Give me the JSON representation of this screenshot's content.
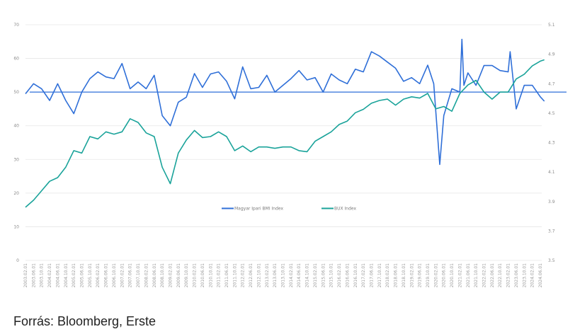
{
  "chart_data": {
    "type": "line",
    "title": "",
    "xlabel": "",
    "ylabel": "",
    "grid": true,
    "legend_placement": "bottom-center",
    "left_axis": {
      "ylim": [
        0,
        70
      ],
      "ticks": [
        "0",
        "10",
        "20",
        "30",
        "40",
        "50",
        "60",
        "70"
      ]
    },
    "right_axis": {
      "ylim": [
        3.5,
        5.1
      ],
      "ticks": [
        "3.5",
        "3.7",
        "3.9",
        "4.1",
        "4.3",
        "4.5",
        "4.7",
        "4.9",
        "5.1"
      ]
    },
    "reference_line": {
      "axis": "left",
      "value": 50,
      "color": "#2f6fd8"
    },
    "x_tick_labels": [
      "2003.02.01",
      "2003.06.01",
      "2003.10.01",
      "2004.02.01",
      "2004.06.01",
      "2004.10.01",
      "2005.02.01",
      "2005.06.01",
      "2005.10.01",
      "2006.02.01",
      "2006.06.01",
      "2006.10.01",
      "2007.02.01",
      "2007.06.01",
      "2007.10.01",
      "2008.02.01",
      "2008.06.01",
      "2008.10.01",
      "2009.02.01",
      "2009.06.01",
      "2009.10.01",
      "2010.02.01",
      "2010.06.01",
      "2010.10.01",
      "2011.02.01",
      "2011.06.01",
      "2011.10.01",
      "2012.02.01",
      "2012.06.01",
      "2012.10.01",
      "2013.02.01",
      "2013.06.01",
      "2013.10.01",
      "2014.02.01",
      "2014.06.01",
      "2014.10.01",
      "2015.02.01",
      "2015.06.01",
      "2015.10.01",
      "2016.02.01",
      "2016.06.01",
      "2016.10.01",
      "2017.02.01",
      "2017.06.01",
      "2017.10.01",
      "2018.02.01",
      "2018.06.01",
      "2018.10.01",
      "2019.02.01",
      "2019.06.01",
      "2019.10.01",
      "2020.02.01",
      "2020.06.01",
      "2020.10.01",
      "2021.02.01",
      "2021.06.01",
      "2021.10.01",
      "2022.02.01",
      "2022.06.01",
      "2022.10.01",
      "2023.02.01",
      "2023.06.01",
      "2023.10.01",
      "2024.02.01",
      "2024.06.01"
    ],
    "series": [
      {
        "name": "Magyar Ipari BMI Index",
        "axis": "left",
        "color": "#2f6fd8",
        "points": [
          [
            "2003.02.01",
            49.5
          ],
          [
            "2003.06.01",
            52.5
          ],
          [
            "2003.10.01",
            51
          ],
          [
            "2004.02.01",
            47.5
          ],
          [
            "2004.06.01",
            52.5
          ],
          [
            "2004.10.01",
            47.5
          ],
          [
            "2005.02.01",
            43.6
          ],
          [
            "2005.06.01",
            50
          ],
          [
            "2005.10.01",
            54
          ],
          [
            "2006.02.01",
            56
          ],
          [
            "2006.06.01",
            54.5
          ],
          [
            "2006.10.01",
            54
          ],
          [
            "2007.02.01",
            58.5
          ],
          [
            "2007.06.01",
            51
          ],
          [
            "2007.10.01",
            53
          ],
          [
            "2008.02.01",
            51
          ],
          [
            "2008.06.01",
            55
          ],
          [
            "2008.10.01",
            43
          ],
          [
            "2009.02.01",
            40
          ],
          [
            "2009.06.01",
            47
          ],
          [
            "2009.10.01",
            48.5
          ],
          [
            "2010.02.01",
            55.5
          ],
          [
            "2010.06.01",
            51.4
          ],
          [
            "2010.10.01",
            55.4
          ],
          [
            "2011.02.01",
            56
          ],
          [
            "2011.06.01",
            53.2
          ],
          [
            "2011.10.01",
            48
          ],
          [
            "2012.02.01",
            57.5
          ],
          [
            "2012.06.01",
            51
          ],
          [
            "2012.10.01",
            51.4
          ],
          [
            "2013.02.01",
            55
          ],
          [
            "2013.06.01",
            50
          ],
          [
            "2013.10.01",
            52
          ],
          [
            "2014.02.01",
            54
          ],
          [
            "2014.06.01",
            56.4
          ],
          [
            "2014.10.01",
            53.6
          ],
          [
            "2015.02.01",
            54.3
          ],
          [
            "2015.06.01",
            50
          ],
          [
            "2015.10.01",
            55.4
          ],
          [
            "2016.02.01",
            53.6
          ],
          [
            "2016.06.01",
            52.5
          ],
          [
            "2016.10.01",
            56.8
          ],
          [
            "2017.02.01",
            56
          ],
          [
            "2017.06.01",
            62
          ],
          [
            "2017.10.01",
            60.7
          ],
          [
            "2018.02.01",
            58.9
          ],
          [
            "2018.06.01",
            57.1
          ],
          [
            "2018.10.01",
            53.2
          ],
          [
            "2019.02.01",
            54.3
          ],
          [
            "2019.06.01",
            52.5
          ],
          [
            "2019.10.01",
            58
          ],
          [
            "2020.01.01",
            52.5
          ],
          [
            "2020.04.01",
            28.5
          ],
          [
            "2020.06.01",
            43
          ],
          [
            "2020.10.01",
            51
          ],
          [
            "2021.02.01",
            50
          ],
          [
            "2021.03.01",
            65.7
          ],
          [
            "2021.04.01",
            52
          ],
          [
            "2021.06.01",
            55.7
          ],
          [
            "2021.10.01",
            52
          ],
          [
            "2022.02.01",
            57.9
          ],
          [
            "2022.06.01",
            57.9
          ],
          [
            "2022.10.01",
            56.4
          ],
          [
            "2023.02.01",
            56
          ],
          [
            "2023.03.01",
            62
          ],
          [
            "2023.06.01",
            45
          ],
          [
            "2023.10.01",
            52
          ],
          [
            "2024.02.01",
            52
          ],
          [
            "2024.06.01",
            48.6
          ],
          [
            "2024.08.01",
            47.3
          ]
        ]
      },
      {
        "name": "BUX Index",
        "axis": "right",
        "color": "#1aa39a",
        "points": [
          [
            "2003.02.01",
            3.861
          ],
          [
            "2003.06.01",
            3.909
          ],
          [
            "2003.10.01",
            3.973
          ],
          [
            "2004.02.01",
            4.037
          ],
          [
            "2004.06.01",
            4.062
          ],
          [
            "2004.10.01",
            4.133
          ],
          [
            "2005.02.01",
            4.245
          ],
          [
            "2005.06.01",
            4.229
          ],
          [
            "2005.10.01",
            4.341
          ],
          [
            "2006.02.01",
            4.325
          ],
          [
            "2006.06.01",
            4.373
          ],
          [
            "2006.10.01",
            4.357
          ],
          [
            "2007.02.01",
            4.373
          ],
          [
            "2007.06.01",
            4.462
          ],
          [
            "2007.10.01",
            4.437
          ],
          [
            "2008.02.01",
            4.366
          ],
          [
            "2008.06.01",
            4.341
          ],
          [
            "2008.10.01",
            4.133
          ],
          [
            "2009.02.01",
            4.021
          ],
          [
            "2009.06.01",
            4.229
          ],
          [
            "2009.10.01",
            4.318
          ],
          [
            "2010.02.01",
            4.382
          ],
          [
            "2010.06.01",
            4.334
          ],
          [
            "2010.10.01",
            4.341
          ],
          [
            "2011.02.01",
            4.373
          ],
          [
            "2011.06.01",
            4.341
          ],
          [
            "2011.10.01",
            4.245
          ],
          [
            "2012.02.01",
            4.277
          ],
          [
            "2012.06.01",
            4.238
          ],
          [
            "2012.10.01",
            4.27
          ],
          [
            "2013.02.01",
            4.27
          ],
          [
            "2013.06.01",
            4.261
          ],
          [
            "2013.10.01",
            4.27
          ],
          [
            "2014.02.01",
            4.27
          ],
          [
            "2014.06.01",
            4.245
          ],
          [
            "2014.10.01",
            4.238
          ],
          [
            "2015.02.01",
            4.309
          ],
          [
            "2015.06.01",
            4.341
          ],
          [
            "2015.10.01",
            4.373
          ],
          [
            "2016.02.01",
            4.423
          ],
          [
            "2016.06.01",
            4.446
          ],
          [
            "2016.10.01",
            4.503
          ],
          [
            "2017.02.01",
            4.526
          ],
          [
            "2017.06.01",
            4.567
          ],
          [
            "2017.10.01",
            4.586
          ],
          [
            "2018.02.01",
            4.595
          ],
          [
            "2018.06.01",
            4.554
          ],
          [
            "2018.10.01",
            4.595
          ],
          [
            "2019.02.01",
            4.611
          ],
          [
            "2019.06.01",
            4.602
          ],
          [
            "2019.10.01",
            4.634
          ],
          [
            "2020.02.01",
            4.529
          ],
          [
            "2020.06.01",
            4.545
          ],
          [
            "2020.10.01",
            4.513
          ],
          [
            "2021.02.01",
            4.634
          ],
          [
            "2021.06.01",
            4.691
          ],
          [
            "2021.10.01",
            4.723
          ],
          [
            "2022.02.01",
            4.643
          ],
          [
            "2022.06.01",
            4.595
          ],
          [
            "2022.10.01",
            4.643
          ],
          [
            "2023.02.01",
            4.643
          ],
          [
            "2023.06.01",
            4.732
          ],
          [
            "2023.10.01",
            4.764
          ],
          [
            "2024.02.01",
            4.821
          ],
          [
            "2024.06.01",
            4.853
          ],
          [
            "2024.08.01",
            4.862
          ]
        ]
      }
    ]
  },
  "footer": {
    "source": "Forrás: Bloomberg, Erste"
  }
}
